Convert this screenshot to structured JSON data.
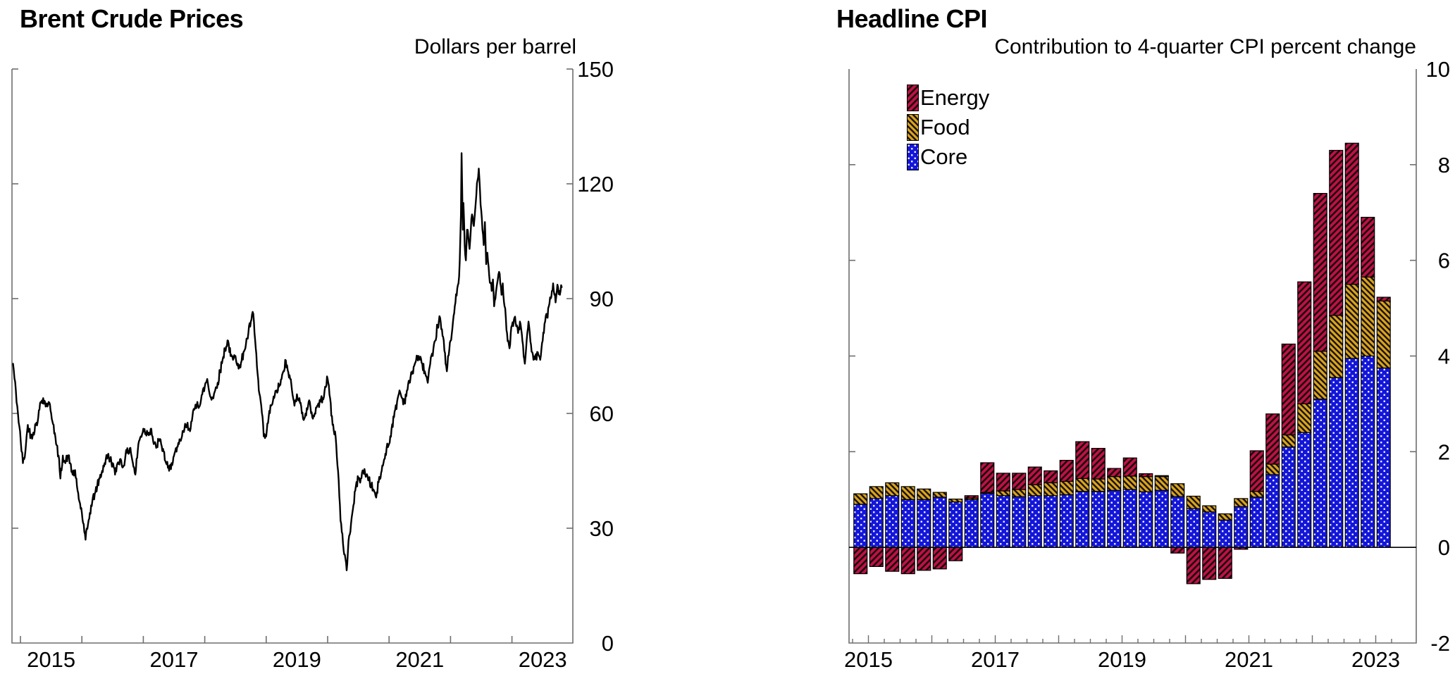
{
  "left_chart": {
    "title": "Brent Crude Prices",
    "unit_label": "Dollars per barrel",
    "y_axis": {
      "ticks": [
        0,
        30,
        60,
        90,
        120,
        150
      ],
      "labels": [
        "0",
        "30",
        "60",
        "90",
        "120",
        "150"
      ],
      "min": 0,
      "max": 150
    },
    "x_axis": {
      "year_ticks": [
        2015,
        2016,
        2017,
        2018,
        2019,
        2020,
        2021,
        2022,
        2023
      ],
      "labels": [
        {
          "text": "2015",
          "center": 2015.5
        },
        {
          "text": "2017",
          "center": 2017.5
        },
        {
          "text": "2019",
          "center": 2019.5
        },
        {
          "text": "2021",
          "center": 2021.5
        },
        {
          "text": "2023",
          "center": 2023.5
        }
      ]
    },
    "chart_data": {
      "type": "line",
      "title": "Brent Crude Prices",
      "ylabel": "Dollars per barrel",
      "ylim": [
        0,
        150
      ],
      "xlim": [
        2014.86,
        2024.0
      ],
      "line_color": "#000000",
      "grid": false,
      "points": [
        [
          2014.88,
          73
        ],
        [
          2014.96,
          60
        ],
        [
          2015.04,
          47
        ],
        [
          2015.08,
          50
        ],
        [
          2015.12,
          57
        ],
        [
          2015.17,
          54
        ],
        [
          2015.21,
          55
        ],
        [
          2015.25,
          57
        ],
        [
          2015.29,
          59
        ],
        [
          2015.33,
          63
        ],
        [
          2015.37,
          64
        ],
        [
          2015.42,
          62
        ],
        [
          2015.46,
          63
        ],
        [
          2015.5,
          60
        ],
        [
          2015.54,
          57
        ],
        [
          2015.58,
          52
        ],
        [
          2015.62,
          49
        ],
        [
          2015.65,
          43
        ],
        [
          2015.69,
          49
        ],
        [
          2015.73,
          47
        ],
        [
          2015.77,
          49
        ],
        [
          2015.81,
          47
        ],
        [
          2015.85,
          44
        ],
        [
          2015.88,
          45
        ],
        [
          2015.92,
          41
        ],
        [
          2015.96,
          37
        ],
        [
          2016.0,
          34
        ],
        [
          2016.04,
          29
        ],
        [
          2016.06,
          27
        ],
        [
          2016.1,
          31
        ],
        [
          2016.13,
          34
        ],
        [
          2016.17,
          37
        ],
        [
          2016.21,
          39
        ],
        [
          2016.25,
          41
        ],
        [
          2016.29,
          43
        ],
        [
          2016.33,
          45
        ],
        [
          2016.37,
          47
        ],
        [
          2016.42,
          49
        ],
        [
          2016.46,
          48
        ],
        [
          2016.5,
          47
        ],
        [
          2016.54,
          44
        ],
        [
          2016.58,
          47
        ],
        [
          2016.62,
          48
        ],
        [
          2016.67,
          46
        ],
        [
          2016.71,
          49
        ],
        [
          2016.75,
          50
        ],
        [
          2016.79,
          51
        ],
        [
          2016.83,
          47
        ],
        [
          2016.87,
          44
        ],
        [
          2016.92,
          52
        ],
        [
          2016.96,
          54
        ],
        [
          2017.0,
          56
        ],
        [
          2017.04,
          55
        ],
        [
          2017.08,
          55
        ],
        [
          2017.13,
          56
        ],
        [
          2017.17,
          52
        ],
        [
          2017.21,
          51
        ],
        [
          2017.25,
          53
        ],
        [
          2017.29,
          52
        ],
        [
          2017.33,
          50
        ],
        [
          2017.37,
          47
        ],
        [
          2017.42,
          45
        ],
        [
          2017.46,
          47
        ],
        [
          2017.5,
          49
        ],
        [
          2017.54,
          50
        ],
        [
          2017.58,
          52
        ],
        [
          2017.63,
          54
        ],
        [
          2017.67,
          56
        ],
        [
          2017.71,
          57
        ],
        [
          2017.75,
          56
        ],
        [
          2017.79,
          58
        ],
        [
          2017.83,
          61
        ],
        [
          2017.88,
          63
        ],
        [
          2017.92,
          62
        ],
        [
          2017.96,
          65
        ],
        [
          2018.0,
          67
        ],
        [
          2018.04,
          69
        ],
        [
          2018.08,
          65
        ],
        [
          2018.13,
          64
        ],
        [
          2018.17,
          66
        ],
        [
          2018.21,
          68
        ],
        [
          2018.25,
          71
        ],
        [
          2018.29,
          74
        ],
        [
          2018.33,
          77
        ],
        [
          2018.38,
          79
        ],
        [
          2018.42,
          75
        ],
        [
          2018.46,
          74
        ],
        [
          2018.5,
          75
        ],
        [
          2018.54,
          73
        ],
        [
          2018.58,
          72
        ],
        [
          2018.63,
          76
        ],
        [
          2018.67,
          78
        ],
        [
          2018.71,
          81
        ],
        [
          2018.75,
          84
        ],
        [
          2018.79,
          86
        ],
        [
          2018.81,
          81
        ],
        [
          2018.83,
          77
        ],
        [
          2018.88,
          66
        ],
        [
          2018.92,
          62
        ],
        [
          2018.96,
          54
        ],
        [
          2019.0,
          54
        ],
        [
          2019.04,
          59
        ],
        [
          2019.08,
          62
        ],
        [
          2019.13,
          64
        ],
        [
          2019.17,
          66
        ],
        [
          2019.21,
          67
        ],
        [
          2019.25,
          69
        ],
        [
          2019.29,
          71
        ],
        [
          2019.31,
          74
        ],
        [
          2019.33,
          72
        ],
        [
          2019.38,
          70
        ],
        [
          2019.42,
          66
        ],
        [
          2019.46,
          62
        ],
        [
          2019.5,
          65
        ],
        [
          2019.54,
          64
        ],
        [
          2019.58,
          60
        ],
        [
          2019.63,
          59
        ],
        [
          2019.67,
          61
        ],
        [
          2019.71,
          63
        ],
        [
          2019.75,
          59
        ],
        [
          2019.79,
          60
        ],
        [
          2019.83,
          62
        ],
        [
          2019.88,
          63
        ],
        [
          2019.92,
          64
        ],
        [
          2019.96,
          67
        ],
        [
          2020.0,
          69
        ],
        [
          2020.04,
          64
        ],
        [
          2020.08,
          57
        ],
        [
          2020.13,
          54
        ],
        [
          2020.17,
          45
        ],
        [
          2020.21,
          32
        ],
        [
          2020.25,
          26
        ],
        [
          2020.29,
          22
        ],
        [
          2020.31,
          19
        ],
        [
          2020.33,
          24
        ],
        [
          2020.35,
          28
        ],
        [
          2020.38,
          31
        ],
        [
          2020.42,
          36
        ],
        [
          2020.46,
          41
        ],
        [
          2020.5,
          43
        ],
        [
          2020.54,
          43
        ],
        [
          2020.58,
          45
        ],
        [
          2020.63,
          44
        ],
        [
          2020.67,
          43
        ],
        [
          2020.71,
          41
        ],
        [
          2020.75,
          40
        ],
        [
          2020.79,
          38
        ],
        [
          2020.83,
          42
        ],
        [
          2020.88,
          45
        ],
        [
          2020.92,
          48
        ],
        [
          2020.96,
          51
        ],
        [
          2021.0,
          52
        ],
        [
          2021.04,
          56
        ],
        [
          2021.08,
          59
        ],
        [
          2021.13,
          63
        ],
        [
          2021.17,
          66
        ],
        [
          2021.21,
          64
        ],
        [
          2021.25,
          63
        ],
        [
          2021.29,
          66
        ],
        [
          2021.33,
          68
        ],
        [
          2021.38,
          71
        ],
        [
          2021.42,
          73
        ],
        [
          2021.46,
          75
        ],
        [
          2021.5,
          74
        ],
        [
          2021.54,
          73
        ],
        [
          2021.58,
          71
        ],
        [
          2021.63,
          68
        ],
        [
          2021.67,
          73
        ],
        [
          2021.71,
          75
        ],
        [
          2021.75,
          79
        ],
        [
          2021.79,
          83
        ],
        [
          2021.83,
          85
        ],
        [
          2021.85,
          82
        ],
        [
          2021.88,
          80
        ],
        [
          2021.92,
          73
        ],
        [
          2021.94,
          71
        ],
        [
          2021.96,
          75
        ],
        [
          2022.0,
          79
        ],
        [
          2022.04,
          84
        ],
        [
          2022.08,
          89
        ],
        [
          2022.13,
          94
        ],
        [
          2022.15,
          100
        ],
        [
          2022.17,
          112
        ],
        [
          2022.18,
          128
        ],
        [
          2022.19,
          118
        ],
        [
          2022.2,
          108
        ],
        [
          2022.21,
          115
        ],
        [
          2022.23,
          104
        ],
        [
          2022.25,
          100
        ],
        [
          2022.27,
          108
        ],
        [
          2022.29,
          106
        ],
        [
          2022.31,
          103
        ],
        [
          2022.33,
          108
        ],
        [
          2022.35,
          112
        ],
        [
          2022.38,
          109
        ],
        [
          2022.4,
          113
        ],
        [
          2022.42,
          117
        ],
        [
          2022.44,
          121
        ],
        [
          2022.46,
          124
        ],
        [
          2022.48,
          118
        ],
        [
          2022.5,
          113
        ],
        [
          2022.52,
          108
        ],
        [
          2022.54,
          104
        ],
        [
          2022.56,
          110
        ],
        [
          2022.58,
          99
        ],
        [
          2022.6,
          102
        ],
        [
          2022.63,
          96
        ],
        [
          2022.65,
          94
        ],
        [
          2022.67,
          92
        ],
        [
          2022.69,
          95
        ],
        [
          2022.71,
          88
        ],
        [
          2022.73,
          90
        ],
        [
          2022.75,
          93
        ],
        [
          2022.77,
          95
        ],
        [
          2022.79,
          97
        ],
        [
          2022.81,
          94
        ],
        [
          2022.83,
          91
        ],
        [
          2022.85,
          94
        ],
        [
          2022.88,
          88
        ],
        [
          2022.9,
          85
        ],
        [
          2022.92,
          81
        ],
        [
          2022.94,
          79
        ],
        [
          2022.96,
          77
        ],
        [
          2022.98,
          81
        ],
        [
          2023.0,
          83
        ],
        [
          2023.04,
          85
        ],
        [
          2023.08,
          83
        ],
        [
          2023.1,
          81
        ],
        [
          2023.13,
          84
        ],
        [
          2023.15,
          82
        ],
        [
          2023.17,
          79
        ],
        [
          2023.19,
          75
        ],
        [
          2023.21,
          73
        ],
        [
          2023.23,
          77
        ],
        [
          2023.25,
          81
        ],
        [
          2023.27,
          84
        ],
        [
          2023.29,
          81
        ],
        [
          2023.31,
          78
        ],
        [
          2023.33,
          76
        ],
        [
          2023.35,
          74
        ],
        [
          2023.38,
          75
        ],
        [
          2023.4,
          74
        ],
        [
          2023.42,
          76
        ],
        [
          2023.44,
          75
        ],
        [
          2023.46,
          74
        ],
        [
          2023.48,
          77
        ],
        [
          2023.5,
          79
        ],
        [
          2023.52,
          81
        ],
        [
          2023.54,
          84
        ],
        [
          2023.56,
          86
        ],
        [
          2023.58,
          85
        ],
        [
          2023.6,
          88
        ],
        [
          2023.63,
          90
        ],
        [
          2023.65,
          92
        ],
        [
          2023.67,
          94
        ],
        [
          2023.69,
          91
        ],
        [
          2023.71,
          89
        ],
        [
          2023.73,
          92
        ],
        [
          2023.75,
          93
        ],
        [
          2023.78,
          91
        ],
        [
          2023.81,
          93
        ]
      ]
    }
  },
  "right_chart": {
    "title": "Headline CPI",
    "subtitle": "Contribution to 4-quarter CPI percent change",
    "legend": [
      {
        "label": "Energy",
        "color": "#BE1241",
        "pattern": "diagonal-up-hatch"
      },
      {
        "label": "Food",
        "color": "#D8A322",
        "pattern": "diagonal-down-hatch"
      },
      {
        "label": "Core",
        "color": "#1316D8",
        "pattern": "white-dots"
      }
    ],
    "y_axis": {
      "ticks": [
        -2,
        0,
        2,
        4,
        6,
        8,
        10
      ],
      "labels": [
        "-2",
        "0",
        "2",
        "4",
        "6",
        "8",
        "10"
      ],
      "min": -2,
      "max": 10
    },
    "x_axis": {
      "year_ticks": [
        2015,
        2016,
        2017,
        2018,
        2019,
        2020,
        2021,
        2022,
        2023
      ],
      "labels": [
        {
          "text": "2015",
          "tick": 2015
        },
        {
          "text": "2017",
          "tick": 2017
        },
        {
          "text": "2019",
          "tick": 2019
        },
        {
          "text": "2021",
          "tick": 2021
        },
        {
          "text": "2023",
          "tick": 2023
        }
      ]
    },
    "chart_data": {
      "type": "bar",
      "stacked": true,
      "title": "Headline CPI",
      "subtitle": "Contribution to 4-quarter CPI percent change",
      "ylabel": "Contribution to 4-quarter CPI percent change",
      "ylim": [
        -2,
        10
      ],
      "legend_position": "top-left",
      "grid": false,
      "categories": [
        "2014 Q4",
        "2015 Q1",
        "2015 Q2",
        "2015 Q3",
        "2015 Q4",
        "2016 Q1",
        "2016 Q2",
        "2016 Q3",
        "2016 Q4",
        "2017 Q1",
        "2017 Q2",
        "2017 Q3",
        "2017 Q4",
        "2018 Q1",
        "2018 Q2",
        "2018 Q3",
        "2018 Q4",
        "2019 Q1",
        "2019 Q2",
        "2019 Q3",
        "2019 Q4",
        "2020 Q1",
        "2020 Q2",
        "2020 Q3",
        "2020 Q4",
        "2021 Q1",
        "2021 Q2",
        "2021 Q3",
        "2021 Q4",
        "2022 Q1",
        "2022 Q2",
        "2022 Q3",
        "2022 Q4",
        "2023 Q1"
      ],
      "series": [
        {
          "name": "Energy",
          "color": "#BE1241",
          "values": [
            -0.55,
            -0.4,
            -0.5,
            -0.55,
            -0.48,
            -0.45,
            -0.28,
            0.05,
            0.62,
            0.37,
            0.34,
            0.37,
            0.25,
            0.44,
            0.77,
            0.64,
            0.17,
            0.38,
            0.06,
            0.02,
            -0.12,
            -0.76,
            -0.67,
            -0.65,
            -0.04,
            0.85,
            1.05,
            1.9,
            2.55,
            3.3,
            3.45,
            2.95,
            1.25,
            0.08
          ]
        },
        {
          "name": "Food",
          "color": "#D8A322",
          "values": [
            0.22,
            0.25,
            0.27,
            0.27,
            0.22,
            0.1,
            0.06,
            0.03,
            0.02,
            0.1,
            0.15,
            0.23,
            0.27,
            0.28,
            0.27,
            0.26,
            0.29,
            0.28,
            0.32,
            0.29,
            0.27,
            0.26,
            0.13,
            0.13,
            0.17,
            0.12,
            0.22,
            0.25,
            0.6,
            1.0,
            1.3,
            1.55,
            1.65,
            1.4
          ]
        },
        {
          "name": "Core",
          "color": "#1316D8",
          "values": [
            0.9,
            1.02,
            1.08,
            1.0,
            1.0,
            1.05,
            0.95,
            1.0,
            1.13,
            1.08,
            1.06,
            1.08,
            1.08,
            1.1,
            1.17,
            1.17,
            1.19,
            1.21,
            1.16,
            1.19,
            1.06,
            0.81,
            0.74,
            0.57,
            0.85,
            1.05,
            1.52,
            2.1,
            2.4,
            3.1,
            3.55,
            3.95,
            4.0,
            3.75
          ]
        }
      ]
    }
  }
}
